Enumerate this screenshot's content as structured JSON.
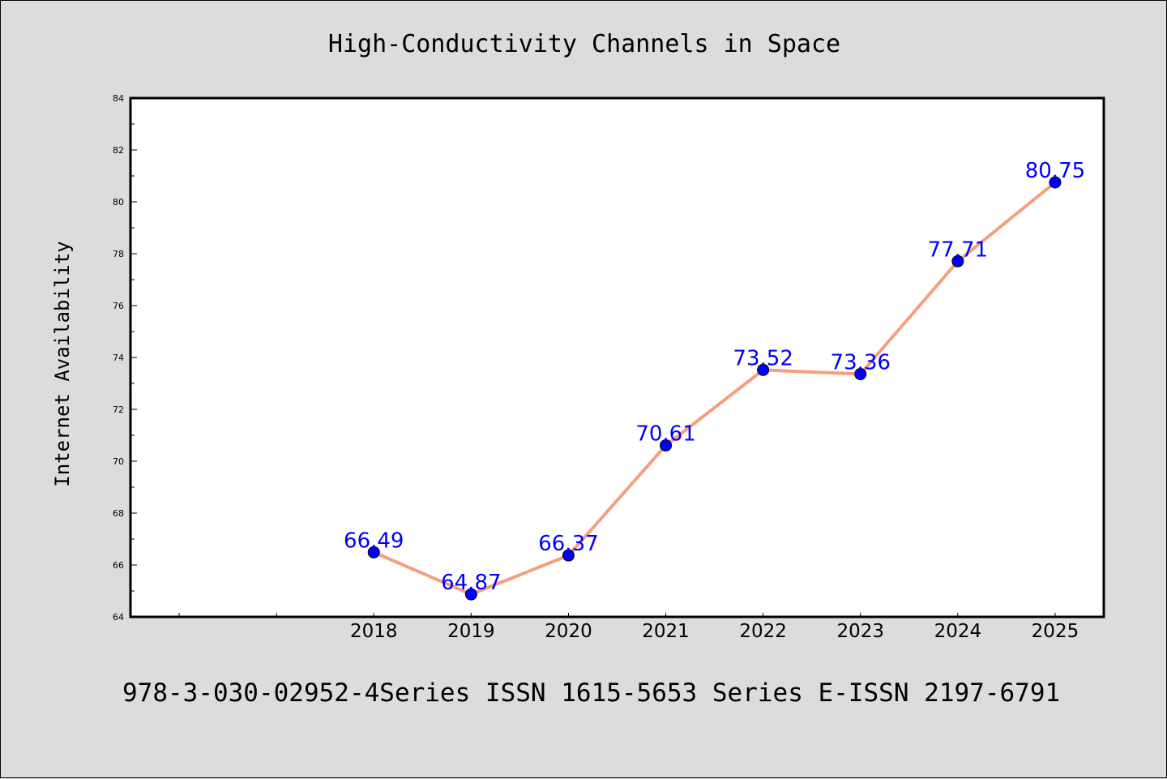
{
  "chart_data": {
    "type": "line",
    "title": "High-Conductivity Channels in Space",
    "xlabel": "",
    "ylabel": "Internet Availability",
    "x": [
      "2018",
      "2019",
      "2020",
      "2021",
      "2022",
      "2023",
      "2024",
      "2025"
    ],
    "values": [
      66.49,
      64.87,
      66.37,
      70.61,
      73.52,
      73.36,
      77.71,
      80.75
    ],
    "data_labels": [
      "66.49",
      "64.87",
      "66.37",
      "70.61",
      "73.52",
      "73.36",
      "77.71",
      "80.75"
    ],
    "ylim": [
      64,
      84
    ],
    "yticks": [
      "64",
      "66",
      "68",
      "70",
      "72",
      "74",
      "76",
      "78",
      "80",
      "82",
      "84"
    ],
    "xlim_category_slots": 10,
    "grid": false,
    "legend": "none",
    "colors": {
      "line": "#f4a07e",
      "marker": "#0000ff",
      "label": "#0000ff",
      "plot_bg": "#ffffff",
      "page_bg": "#dcdcdc"
    }
  },
  "footer": {
    "text": "978-3-030-02952-4Series ISSN 1615-5653 Series E-ISSN 2197-6791"
  }
}
